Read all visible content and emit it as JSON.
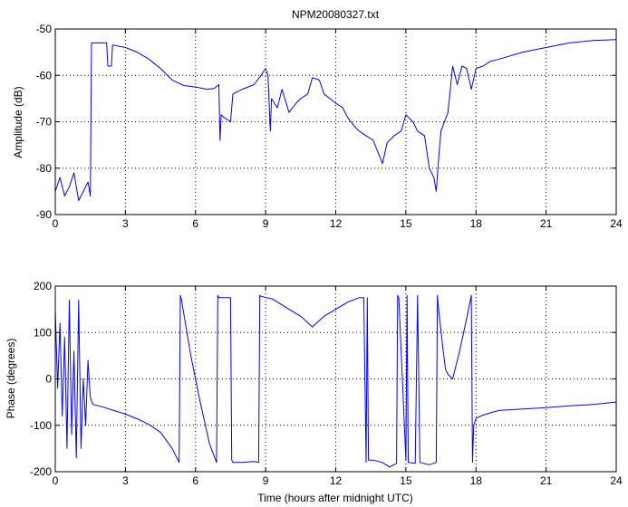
{
  "figure": {
    "title": "NPM20080327.txt",
    "line_color": "#0000ff"
  },
  "chart_data": [
    {
      "type": "line",
      "title": "NPM20080327.txt",
      "xlabel": "",
      "ylabel": "Amplitude (dB)",
      "xlim": [
        0,
        24
      ],
      "ylim": [
        -90,
        -50
      ],
      "xticks": [
        0,
        3,
        6,
        9,
        12,
        15,
        18,
        21,
        24
      ],
      "yticks": [
        -90,
        -80,
        -70,
        -60,
        -50
      ],
      "grid": true,
      "series": [
        {
          "x": [
            0.0,
            0.2,
            0.4,
            0.6,
            0.8,
            1.0,
            1.2,
            1.4,
            1.5,
            1.55,
            1.6,
            2.0,
            2.2,
            2.25,
            2.3,
            2.4,
            2.45,
            2.5,
            3.0,
            3.5,
            4.0,
            4.5,
            5.0,
            5.5,
            6.0,
            6.5,
            6.8,
            7.0,
            7.05,
            7.1,
            7.2,
            7.5,
            7.6,
            8.0,
            8.5,
            8.8,
            9.0,
            9.1,
            9.2,
            9.25,
            9.5,
            9.7,
            10.0,
            10.3,
            10.5,
            10.8,
            11.0,
            11.3,
            11.5,
            12.0,
            12.3,
            12.5,
            12.8,
            13.0,
            13.3,
            13.6,
            14.0,
            14.2,
            14.5,
            14.8,
            15.0,
            15.3,
            15.5,
            15.8,
            16.0,
            16.2,
            16.3,
            16.4,
            16.5,
            16.8,
            17.0,
            17.2,
            17.4,
            17.6,
            17.8,
            18.0,
            18.3,
            18.6,
            19.0,
            20.0,
            21.0,
            22.0,
            23.0,
            24.0
          ],
          "y": [
            -85,
            -82,
            -86,
            -84,
            -81,
            -87,
            -85,
            -83,
            -86,
            -53,
            -53,
            -53,
            -53,
            -58,
            -58,
            -58,
            -53.5,
            -53.5,
            -54,
            -55,
            -56.5,
            -58.5,
            -61,
            -62.2,
            -62.5,
            -63,
            -62.8,
            -62,
            -74,
            -68.5,
            -69,
            -70,
            -64,
            -63,
            -62,
            -60,
            -58.5,
            -60,
            -72,
            -65,
            -67,
            -63,
            -68,
            -66,
            -65,
            -64,
            -60.5,
            -61,
            -64,
            -66,
            -67,
            -69,
            -71,
            -72,
            -73,
            -74,
            -79,
            -74.5,
            -73,
            -72,
            -68.5,
            -70,
            -72,
            -73,
            -80,
            -82,
            -85,
            -78,
            -72,
            -68,
            -58,
            -62,
            -58,
            -58.5,
            -63,
            -58.5,
            -58,
            -57,
            -56.5,
            -55,
            -54,
            -53,
            -52.5,
            -52.3
          ]
        }
      ]
    },
    {
      "type": "line",
      "title": "",
      "xlabel": "Time (hours after midnight UTC)",
      "ylabel": "Phase (degrees)",
      "xlim": [
        0,
        24
      ],
      "ylim": [
        -200,
        200
      ],
      "xticks": [
        0,
        3,
        6,
        9,
        12,
        15,
        18,
        21,
        24
      ],
      "yticks": [
        -200,
        -100,
        0,
        100,
        200
      ],
      "grid": true,
      "series": [
        {
          "x": [
            0.0,
            0.1,
            0.2,
            0.3,
            0.4,
            0.5,
            0.6,
            0.7,
            0.8,
            0.9,
            1.0,
            1.1,
            1.2,
            1.3,
            1.4,
            1.5,
            1.6,
            2.0,
            2.5,
            3.0,
            3.5,
            4.0,
            4.5,
            5.0,
            5.3,
            5.35,
            5.4,
            5.8,
            6.2,
            6.6,
            6.9,
            6.95,
            7.0,
            7.5,
            7.55,
            7.6,
            8.0,
            8.5,
            8.7,
            8.75,
            8.8,
            9.3,
            10.0,
            10.5,
            11.0,
            11.5,
            12.0,
            12.5,
            13.0,
            13.2,
            13.3,
            13.35,
            13.4,
            13.6,
            14.0,
            14.3,
            14.6,
            14.65,
            14.7,
            15.0,
            15.05,
            15.1,
            15.4,
            15.5,
            15.6,
            16.0,
            16.3,
            16.35,
            16.4,
            16.6,
            16.7,
            16.8,
            17.0,
            17.3,
            17.6,
            17.8,
            17.85,
            17.9,
            18.0,
            18.3,
            18.7,
            19.0,
            20.0,
            21.0,
            22.0,
            23.0,
            24.0
          ],
          "y": [
            150,
            -20,
            120,
            -80,
            90,
            -150,
            170,
            -120,
            60,
            -170,
            170,
            -150,
            0,
            -100,
            40,
            -40,
            -55,
            -60,
            -68,
            -76,
            -86,
            -98,
            -115,
            -150,
            -180,
            180,
            170,
            50,
            -50,
            -140,
            -180,
            180,
            175,
            175,
            -175,
            -180,
            -180,
            -178,
            -180,
            180,
            178,
            172,
            150,
            135,
            112,
            135,
            150,
            165,
            175,
            175,
            -180,
            175,
            -175,
            -175,
            -180,
            -190,
            -182,
            180,
            175,
            -175,
            180,
            -180,
            -182,
            180,
            -180,
            -185,
            -180,
            180,
            150,
            60,
            20,
            10,
            0,
            60,
            130,
            180,
            -180,
            -100,
            -85,
            -78,
            -72,
            -68,
            -65,
            -62,
            -58,
            -55,
            -50
          ]
        }
      ]
    }
  ]
}
